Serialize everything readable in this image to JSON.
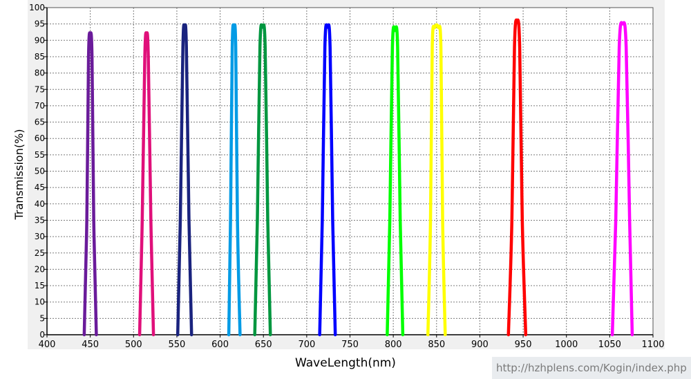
{
  "chart_data": {
    "type": "line",
    "title": "",
    "xlabel": "WaveLength(nm)",
    "ylabel": "Transmission(%)",
    "xlim": [
      400,
      1100
    ],
    "ylim": [
      0,
      100
    ],
    "xticks": [
      400,
      450,
      500,
      550,
      600,
      650,
      700,
      750,
      800,
      850,
      900,
      950,
      1000,
      1050,
      1100
    ],
    "yticks": [
      0,
      5,
      10,
      15,
      20,
      25,
      30,
      35,
      40,
      45,
      50,
      55,
      60,
      65,
      70,
      75,
      80,
      85,
      90,
      95,
      100
    ],
    "grid": true,
    "legend": "none",
    "series": [
      {
        "color": "#6a1b9a",
        "x": [
          443,
          446,
          448,
          450,
          452,
          454,
          457
        ],
        "y": [
          0,
          35,
          85,
          92,
          85,
          35,
          0
        ]
      },
      {
        "color": "#e0107a",
        "x": [
          507,
          510,
          513,
          515,
          517,
          520,
          523
        ],
        "y": [
          0,
          35,
          85,
          92,
          85,
          35,
          0
        ]
      },
      {
        "color": "#1a237e",
        "x": [
          551,
          554,
          557,
          559,
          561,
          564,
          567
        ],
        "y": [
          0,
          35,
          88,
          94,
          88,
          35,
          0
        ]
      },
      {
        "color": "#039be5",
        "x": [
          610,
          612,
          614,
          616,
          618,
          620,
          623
        ],
        "y": [
          0,
          35,
          88,
          94,
          88,
          35,
          0
        ]
      },
      {
        "color": "#00963f",
        "x": [
          640,
          643,
          646,
          649,
          652,
          655,
          658
        ],
        "y": [
          0,
          35,
          88,
          94,
          88,
          35,
          0
        ]
      },
      {
        "color": "#0000ff",
        "x": [
          715,
          718,
          721,
          724,
          727,
          730,
          733
        ],
        "y": [
          0,
          35,
          88,
          94,
          88,
          35,
          0
        ]
      },
      {
        "color": "#00ff00",
        "x": [
          793,
          796,
          799,
          802,
          805,
          808,
          811
        ],
        "y": [
          0,
          35,
          88,
          93,
          88,
          35,
          0
        ]
      },
      {
        "color": "#ffff00",
        "x": [
          840,
          843,
          845,
          848,
          852,
          855,
          857,
          860
        ],
        "y": [
          0,
          35,
          88,
          94,
          94,
          88,
          35,
          0
        ]
      },
      {
        "color": "#ff0000",
        "x": [
          933,
          937,
          940,
          943,
          946,
          949,
          953
        ],
        "y": [
          0,
          35,
          88,
          96,
          88,
          35,
          0
        ]
      },
      {
        "color": "#ff00ff",
        "x": [
          1053,
          1057,
          1061,
          1065,
          1069,
          1073,
          1076
        ],
        "y": [
          0,
          35,
          88,
          95,
          88,
          35,
          0
        ]
      }
    ]
  },
  "watermark": "http://hzhplens.com/Kogin/index.php"
}
